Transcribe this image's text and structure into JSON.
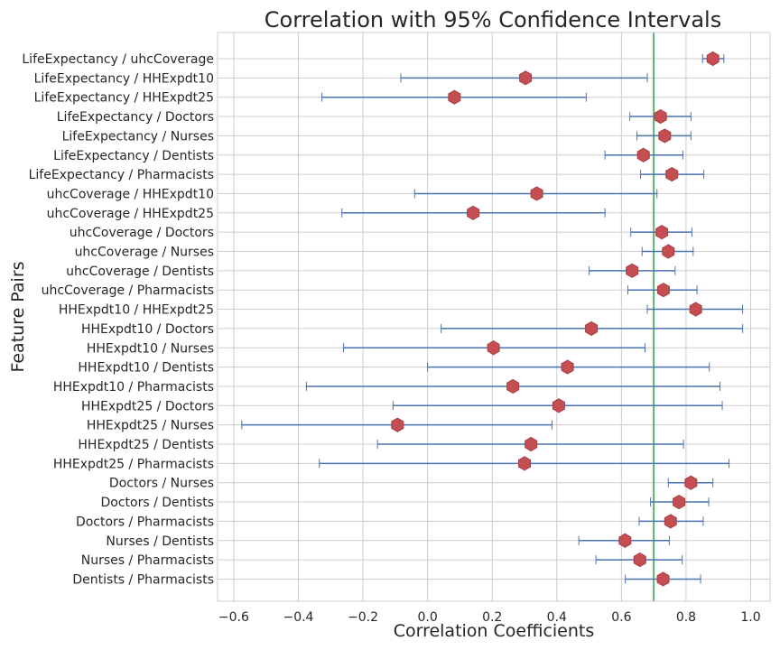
{
  "chart_data": {
    "type": "scatter",
    "title": "Correlation with 95% Confidence Intervals",
    "xlabel": "Correlation Coefficients",
    "ylabel": "Feature Pairs",
    "xlim": [
      -0.65,
      1.06
    ],
    "xticks": [
      -0.6,
      -0.4,
      -0.2,
      0.0,
      0.2,
      0.4,
      0.6,
      0.8,
      1.0
    ],
    "xtick_labels": [
      "−0.6",
      "−0.4",
      "−0.2",
      "0.0",
      "0.2",
      "0.4",
      "0.6",
      "0.8",
      "1.0"
    ],
    "reference_line": 0.7,
    "grid": true,
    "colors": {
      "marker": "#c44e52",
      "errorbar": "#4c72b0",
      "reference": "#55a868",
      "grid": "#cccccc"
    },
    "categories": [
      "LifeExpectancy / uhcCoverage",
      "LifeExpectancy / HHExpdt10",
      "LifeExpectancy / HHExpdt25",
      "LifeExpectancy / Doctors",
      "LifeExpectancy / Nurses",
      "LifeExpectancy / Dentists",
      "LifeExpectancy / Pharmacists",
      "uhcCoverage / HHExpdt10",
      "uhcCoverage / HHExpdt25",
      "uhcCoverage / Doctors",
      "uhcCoverage / Nurses",
      "uhcCoverage / Dentists",
      "uhcCoverage / Pharmacists",
      "HHExpdt10 / HHExpdt25",
      "HHExpdt10 / Doctors",
      "HHExpdt10 / Nurses",
      "HHExpdt10 / Dentists",
      "HHExpdt10 / Pharmacists",
      "HHExpdt25 / Doctors",
      "HHExpdt25 / Nurses",
      "HHExpdt25 / Dentists",
      "HHExpdt25 / Pharmacists",
      "Doctors / Nurses",
      "Doctors / Dentists",
      "Doctors / Pharmacists",
      "Nurses / Dentists",
      "Nurses / Pharmacists",
      "Dentists / Pharmacists"
    ],
    "values": [
      0.883,
      0.303,
      0.083,
      0.721,
      0.734,
      0.668,
      0.756,
      0.338,
      0.141,
      0.725,
      0.745,
      0.633,
      0.73,
      0.83,
      0.507,
      0.204,
      0.433,
      0.264,
      0.406,
      -0.093,
      0.32,
      0.3,
      0.815,
      0.778,
      0.752,
      0.611,
      0.657,
      0.729
    ],
    "ci_lower": [
      0.851,
      -0.083,
      -0.327,
      0.626,
      0.648,
      0.549,
      0.659,
      -0.04,
      -0.265,
      0.629,
      0.664,
      0.5,
      0.62,
      0.68,
      0.042,
      -0.26,
      0.0,
      -0.375,
      -0.107,
      -0.575,
      -0.155,
      -0.335,
      0.745,
      0.69,
      0.655,
      0.468,
      0.521,
      0.612
    ],
    "ci_upper": [
      0.917,
      0.68,
      0.491,
      0.815,
      0.815,
      0.79,
      0.855,
      0.71,
      0.549,
      0.818,
      0.822,
      0.766,
      0.834,
      0.975,
      0.975,
      0.673,
      0.872,
      0.905,
      0.912,
      0.385,
      0.792,
      0.933,
      0.883,
      0.87,
      0.853,
      0.748,
      0.788,
      0.845
    ]
  }
}
